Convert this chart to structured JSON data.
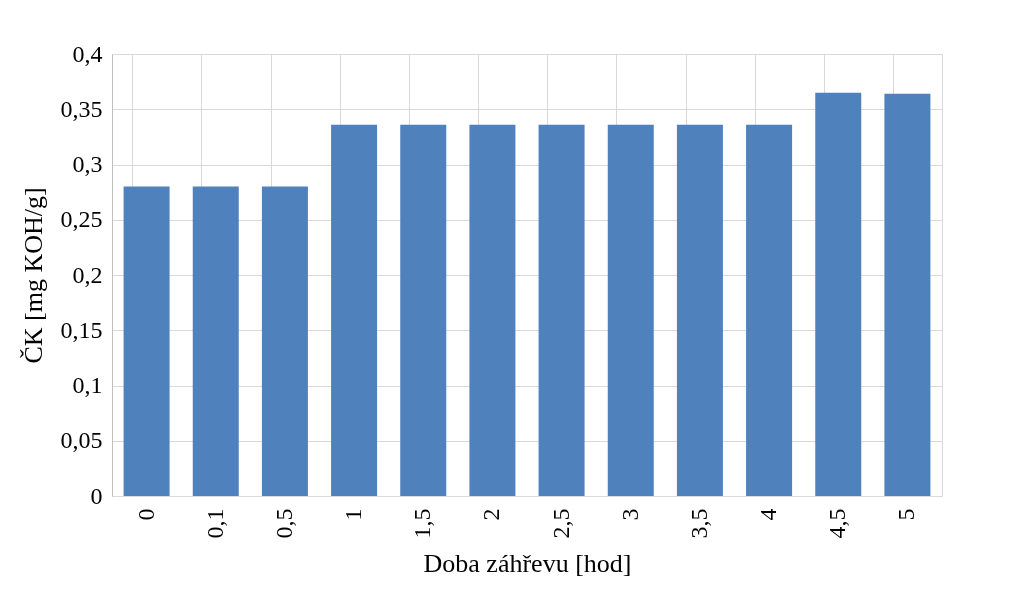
{
  "chart_data": {
    "type": "bar",
    "xlabel": "Doba záhřevu [hod]",
    "ylabel": "ČK [mg KOH/g]",
    "categories": [
      "0",
      "0,1",
      "0,5",
      "1",
      "1,5",
      "2",
      "2,5",
      "3",
      "3,5",
      "4",
      "4,5",
      "5"
    ],
    "values": [
      0.28,
      0.28,
      0.28,
      0.336,
      0.336,
      0.336,
      0.336,
      0.336,
      0.336,
      0.336,
      0.365,
      0.364
    ],
    "color": "#4f81bd",
    "ylim": [
      0,
      0.4
    ],
    "yticks": [
      0,
      {
        "value": 0.05,
        "label": "0,05"
      },
      {
        "value": 0.1,
        "label": "0,1"
      },
      {
        "value": 0.15,
        "label": "0,15"
      },
      {
        "value": 0.2,
        "label": "0,2"
      },
      {
        "value": 0.25,
        "label": "0,25"
      },
      {
        "value": 0.3,
        "label": "0,3"
      },
      {
        "value": 0.35,
        "label": "0,35"
      },
      {
        "value": 0.4,
        "label": "0,4"
      }
    ],
    "grid": true
  }
}
